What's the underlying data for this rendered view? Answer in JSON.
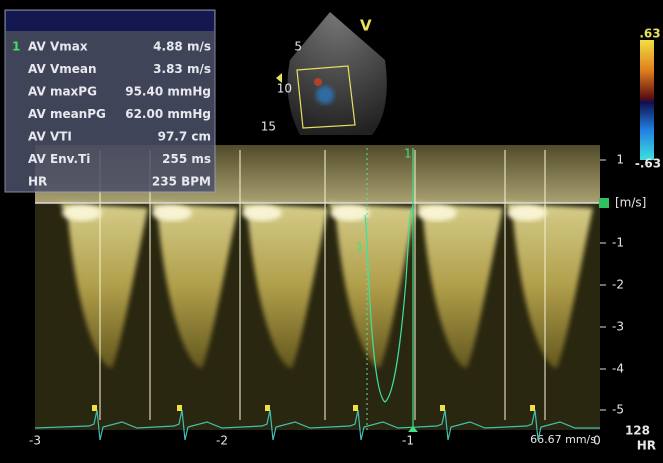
{
  "measurements": {
    "index": "1",
    "rows": [
      {
        "label": "AV Vmax",
        "value": "4.88 m/s"
      },
      {
        "label": "AV Vmean",
        "value": "3.83 m/s"
      },
      {
        "label": "AV maxPG",
        "value": "95.40 mmHg"
      },
      {
        "label": "AV meanPG",
        "value": "62.00 mmHg"
      },
      {
        "label": "AV VTI",
        "value": "97.7 cm"
      },
      {
        "label": "AV Env.Ti",
        "value": "255 ms"
      },
      {
        "label": "HR",
        "value": "235 BPM"
      }
    ]
  },
  "image": {
    "view": "V",
    "depth_labels": [
      "5",
      "10",
      "15"
    ]
  },
  "color_scale": {
    "max": ".63",
    "min": "-.63"
  },
  "velocity_scale": {
    "unit": "[m/s]",
    "labels": [
      "1",
      "-1",
      "-2",
      "-3",
      "-4",
      "-5"
    ]
  },
  "time_axis": {
    "labels": [
      "-3",
      "-2",
      "-1",
      "0"
    ]
  },
  "sweep_speed": "66.67 mm/s",
  "heart_rate": {
    "value": "128",
    "label": "HR"
  },
  "cursor_labels": [
    "1",
    "1"
  ]
}
